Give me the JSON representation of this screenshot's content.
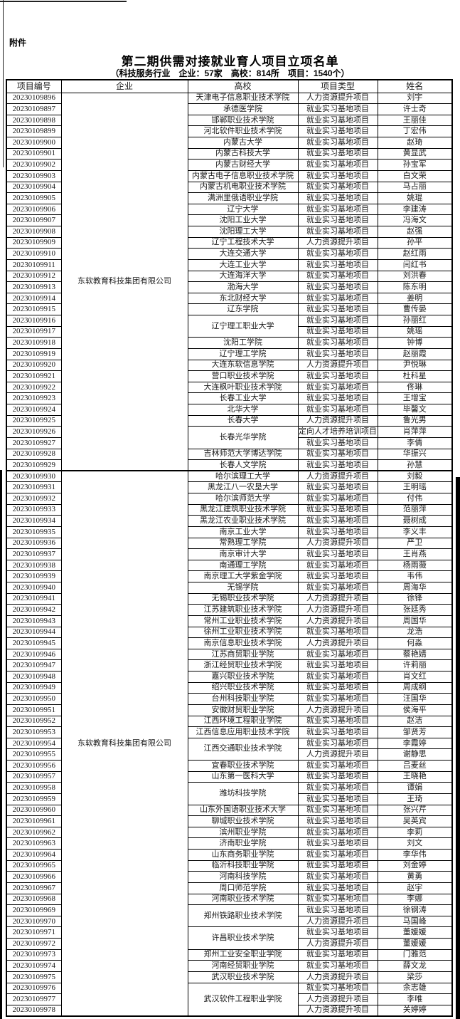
{
  "page": {
    "attachment_label": "附件",
    "title": "第二期供需对接就业育人项目立项名单",
    "subtitle": "（科技服务行业　企业：57家　高校：814所　项目：1540个）"
  },
  "table": {
    "columns": [
      "项目编号",
      "企业",
      "高校",
      "项目类型",
      "姓名"
    ],
    "company": "东软教育科技集团有限公司",
    "sections": [
      {
        "rows": [
          {
            "id": "20230109896",
            "school": "天津电子信息职业技术学院",
            "span": 1,
            "type": "人力资源提升项目",
            "name": "刘宇"
          },
          {
            "id": "20230109897",
            "school": "承德医学院",
            "span": 1,
            "type": "就业实习基地项目",
            "name": "许士奇"
          },
          {
            "id": "20230109898",
            "school": "邯郸职业技术学院",
            "span": 1,
            "type": "就业实习基地项目",
            "name": "王丽佳"
          },
          {
            "id": "20230109899",
            "school": "河北软件职业技术学院",
            "span": 1,
            "type": "就业实习基地项目",
            "name": "丁宏伟"
          },
          {
            "id": "20230109900",
            "school": "内蒙古大学",
            "span": 1,
            "type": "就业实习基地项目",
            "name": "赵琦"
          },
          {
            "id": "20230109901",
            "school": "内蒙古科技大学",
            "span": 1,
            "type": "就业实习基地项目",
            "name": "黄显武"
          },
          {
            "id": "20230109902",
            "school": "内蒙古财经大学",
            "span": 1,
            "type": "就业实习基地项目",
            "name": "孙宝军"
          },
          {
            "id": "20230109903",
            "school": "内蒙古电子信息职业技术学院",
            "span": 1,
            "type": "就业实习基地项目",
            "name": "白文荣"
          },
          {
            "id": "20230109904",
            "school": "内蒙古机电职业技术学院",
            "span": 1,
            "type": "就业实习基地项目",
            "name": "马占丽"
          },
          {
            "id": "20230109905",
            "school": "满洲里俄语职业学院",
            "span": 1,
            "type": "就业实习基地项目",
            "name": "姚琨"
          },
          {
            "id": "20230109906",
            "school": "辽宁大学",
            "span": 1,
            "type": "就业实习基地项目",
            "name": "李建涛"
          },
          {
            "id": "20230109907",
            "school": "沈阳工业大学",
            "span": 1,
            "type": "就业实习基地项目",
            "name": "冯海文"
          },
          {
            "id": "20230109908",
            "school": "沈阳理工大学",
            "span": 1,
            "type": "就业实习基地项目",
            "name": "赵强"
          },
          {
            "id": "20230109909",
            "school": "辽宁工程技术大学",
            "span": 1,
            "type": "人力资源提升项目",
            "name": "孙平"
          },
          {
            "id": "20230109910",
            "school": "大连交通大学",
            "span": 1,
            "type": "就业实习基地项目",
            "name": "赵红雨"
          },
          {
            "id": "20230109911",
            "school": "大连工业大学",
            "span": 1,
            "type": "就业实习基地项目",
            "name": "闫红书"
          },
          {
            "id": "20230109912",
            "school": "大连海洋大学",
            "span": 1,
            "type": "就业实习基地项目",
            "name": "刘洪春"
          },
          {
            "id": "20230109913",
            "school": "渤海大学",
            "span": 1,
            "type": "就业实习基地项目",
            "name": "陈东明"
          },
          {
            "id": "20230109914",
            "school": "东北财经大学",
            "span": 1,
            "type": "就业实习基地项目",
            "name": "姜明"
          },
          {
            "id": "20230109915",
            "school": "辽东学院",
            "span": 1,
            "type": "就业实习基地项目",
            "name": "曹传晏"
          },
          {
            "id": "20230109916",
            "school": "辽宁理工职业大学",
            "span": 2,
            "type": "就业实习基地项目",
            "name": "孙丽红"
          },
          {
            "id": "20230109917",
            "school": null,
            "type": "就业实习基地项目",
            "name": "姚瑶"
          },
          {
            "id": "20230109918",
            "school": "沈阳工学院",
            "span": 1,
            "type": "就业实习基地项目",
            "name": "钟博"
          },
          {
            "id": "20230109919",
            "school": "辽宁理工学院",
            "span": 1,
            "type": "就业实习基地项目",
            "name": "赵丽霞"
          },
          {
            "id": "20230109920",
            "school": "大连东软信息学院",
            "span": 1,
            "type": "人力资源提升项目",
            "name": "尹悦琳"
          },
          {
            "id": "20230109921",
            "school": "营口职业技术学院",
            "span": 1,
            "type": "就业实习基地项目",
            "name": "杜科星"
          },
          {
            "id": "20230109922",
            "school": "大连枫叶职业技术学院",
            "span": 1,
            "type": "就业实习基地项目",
            "name": "佟琳"
          },
          {
            "id": "20230109923",
            "school": "长春工业大学",
            "span": 1,
            "type": "就业实习基地项目",
            "name": "王增宝"
          },
          {
            "id": "20230109924",
            "school": "北华大学",
            "span": 1,
            "type": "就业实习基地项目",
            "name": "毕馨文"
          },
          {
            "id": "20230109925",
            "school": "长春大学",
            "span": 1,
            "type": "人力资源提升项目",
            "name": "鲁光男"
          },
          {
            "id": "20230109926",
            "school": "长春光华学院",
            "span": 2,
            "type": "定向人才培养培训项目",
            "name": "肖萍萍"
          },
          {
            "id": "20230109927",
            "school": null,
            "type": "就业实习基地项目",
            "name": "李倩"
          },
          {
            "id": "20230109928",
            "school": "吉林师范大学博达学院",
            "span": 1,
            "type": "就业实习基地项目",
            "name": "华振兴"
          },
          {
            "id": "20230109929",
            "school": "长春人文学院",
            "span": 1,
            "type": "就业实习基地项目",
            "name": "孙慧"
          }
        ]
      },
      {
        "rows": [
          {
            "id": "20230109930",
            "school": "哈尔滨理工大学",
            "span": 1,
            "type": "人力资源提升项目",
            "name": "刘毅"
          },
          {
            "id": "20230109931",
            "school": "黑龙江八一农垦大学",
            "span": 1,
            "type": "就业实习基地项目",
            "name": "王明瑶"
          },
          {
            "id": "20230109932",
            "school": "哈尔滨师范大学",
            "span": 1,
            "type": "就业实习基地项目",
            "name": "付伟"
          },
          {
            "id": "20230109933",
            "school": "黑龙江建筑职业技术学院",
            "span": 1,
            "type": "就业实习基地项目",
            "name": "范丽萍"
          },
          {
            "id": "20230109934",
            "school": "黑龙江农业职业技术学院",
            "span": 1,
            "type": "就业实习基地项目",
            "name": "聂树成"
          },
          {
            "id": "20230109935",
            "school": "南京工业大学",
            "span": 1,
            "type": "就业实习基地项目",
            "name": "李义丰"
          },
          {
            "id": "20230109936",
            "school": "常熟理工学院",
            "span": 1,
            "type": "人力资源提升项目",
            "name": "严卫"
          },
          {
            "id": "20230109937",
            "school": "南京审计大学",
            "span": 1,
            "type": "就业实习基地项目",
            "name": "王肖燕"
          },
          {
            "id": "20230109938",
            "school": "南通理工学院",
            "span": 1,
            "type": "就业实习基地项目",
            "name": "杨雨薇"
          },
          {
            "id": "20230109939",
            "school": "南京理工大学紫金学院",
            "span": 1,
            "type": "就业实习基地项目",
            "name": "韦伟"
          },
          {
            "id": "20230109940",
            "school": "无锡学院",
            "span": 1,
            "type": "就业实习基地项目",
            "name": "周海华"
          },
          {
            "id": "20230109941",
            "school": "无锡职业技术学院",
            "span": 1,
            "type": "人力资源提升项目",
            "name": "徐锋"
          },
          {
            "id": "20230109942",
            "school": "江苏建筑职业技术学院",
            "span": 1,
            "type": "人力资源提升项目",
            "name": "张廷秀"
          },
          {
            "id": "20230109943",
            "school": "常州工业职业技术学院",
            "span": 1,
            "type": "人力资源提升项目",
            "name": "周国华"
          },
          {
            "id": "20230109944",
            "school": "徐州工业职业技术学院",
            "span": 1,
            "type": "就业实习基地项目",
            "name": "龙浩"
          },
          {
            "id": "20230109945",
            "school": "南京信息职业技术学院",
            "span": 1,
            "type": "人力资源提升项目",
            "name": "何淼"
          },
          {
            "id": "20230109946",
            "school": "江苏商贸职业学院",
            "span": 1,
            "type": "就业实习基地项目",
            "name": "蔡艳婧"
          },
          {
            "id": "20230109947",
            "school": "浙江经贸职业技术学院",
            "span": 1,
            "type": "就业实习基地项目",
            "name": "许莉丽"
          },
          {
            "id": "20230109948",
            "school": "嘉兴职业技术学院",
            "span": 1,
            "type": "就业实习基地项目",
            "name": "肖文红"
          },
          {
            "id": "20230109949",
            "school": "绍兴职业技术学院",
            "span": 1,
            "type": "就业实习基地项目",
            "name": "周成纲"
          },
          {
            "id": "20230109950",
            "school": "台州科技职业学院",
            "span": 1,
            "type": "就业实习基地项目",
            "name": "汪国华"
          },
          {
            "id": "20230109951",
            "school": "安徽财贸职业学院",
            "span": 1,
            "type": "人力资源提升项目",
            "name": "侯海平"
          },
          {
            "id": "20230109952",
            "school": "江西环境工程职业学院",
            "span": 1,
            "type": "就业实习基地项目",
            "name": "赵洁"
          },
          {
            "id": "20230109953",
            "school": "江西信息应用职业技术学院",
            "span": 1,
            "type": "就业实习基地项目",
            "name": "邹贤芳"
          },
          {
            "id": "20230109954",
            "school": "江西交通职业技术学院",
            "span": 2,
            "type": "就业实习基地项目",
            "name": "李霞婷"
          },
          {
            "id": "20230109955",
            "school": null,
            "type": "人力资源提升项目",
            "name": "谢静思"
          },
          {
            "id": "20230109956",
            "school": "宜春职业技术学院",
            "span": 1,
            "type": "就业实习基地项目",
            "name": "吕麦丝"
          },
          {
            "id": "20230109957",
            "school": "山东第一医科大学",
            "span": 1,
            "type": "就业实习基地项目",
            "name": "王晓艳"
          },
          {
            "id": "20230109958",
            "school": "潍坊科技学院",
            "span": 2,
            "type": "就业实习基地项目",
            "name": "谭娟"
          },
          {
            "id": "20230109959",
            "school": null,
            "type": "就业实习基地项目",
            "name": "王琦"
          },
          {
            "id": "20230109960",
            "school": "山东外国语职业技术大学",
            "span": 1,
            "type": "就业实习基地项目",
            "name": "张兴芹"
          },
          {
            "id": "20230109961",
            "school": "聊城职业技术学院",
            "span": 1,
            "type": "就业实习基地项目",
            "name": "吴英宾"
          },
          {
            "id": "20230109962",
            "school": "滨州职业学院",
            "span": 1,
            "type": "就业实习基地项目",
            "name": "李莉"
          },
          {
            "id": "20230109963",
            "school": "济南职业学院",
            "span": 1,
            "type": "就业实习基地项目",
            "name": "刘文"
          },
          {
            "id": "20230109964",
            "school": "山东商务职业学院",
            "span": 1,
            "type": "就业实习基地项目",
            "name": "李华伟"
          },
          {
            "id": "20230109965",
            "school": "临沂科技职业学院",
            "span": 1,
            "type": "就业实习基地项目",
            "name": "刘金婷"
          },
          {
            "id": "20230109966",
            "school": "河南科技学院",
            "span": 1,
            "type": "就业实习基地项目",
            "name": "黄勇"
          },
          {
            "id": "20230109967",
            "school": "周口师范学院",
            "span": 1,
            "type": "就业实习基地项目",
            "name": "赵宇"
          },
          {
            "id": "20230109968",
            "school": "河南职业技术学院",
            "span": 1,
            "type": "就业实习基地项目",
            "name": "李娜"
          },
          {
            "id": "20230109969",
            "school": "郑州铁路职业技术学院",
            "span": 2,
            "type": "就业实习基地项目",
            "name": "徐钢涛"
          },
          {
            "id": "20230109970",
            "school": null,
            "type": "人力资源提升项目",
            "name": "马国峰"
          },
          {
            "id": "20230109971",
            "school": "许昌职业技术学院",
            "span": 2,
            "type": "就业实习基地项目",
            "name": "董媛媛"
          },
          {
            "id": "20230109972",
            "school": null,
            "type": "人力资源提升项目",
            "name": "董媛媛"
          },
          {
            "id": "20230109973",
            "school": "郑州工业安全职业学院",
            "span": 1,
            "type": "就业实习基地项目",
            "name": "门雅范"
          },
          {
            "id": "20230109974",
            "school": "河南经贸职业学院",
            "span": 1,
            "type": "就业实习基地项目",
            "name": "薛文龙"
          },
          {
            "id": "20230109975",
            "school": "武汉职业技术学院",
            "span": 1,
            "type": "人力资源提升项目",
            "name": "梁莎"
          },
          {
            "id": "20230109976",
            "school": "武汉软件工程职业学院",
            "span": 3,
            "type": "就业实习基地项目",
            "name": "余志雄"
          },
          {
            "id": "20230109977",
            "school": null,
            "type": "人力资源提升项目",
            "name": "李唯"
          },
          {
            "id": "20230109978",
            "school": null,
            "type": "人力资源提升项目",
            "name": "关婷婷"
          }
        ]
      }
    ]
  }
}
